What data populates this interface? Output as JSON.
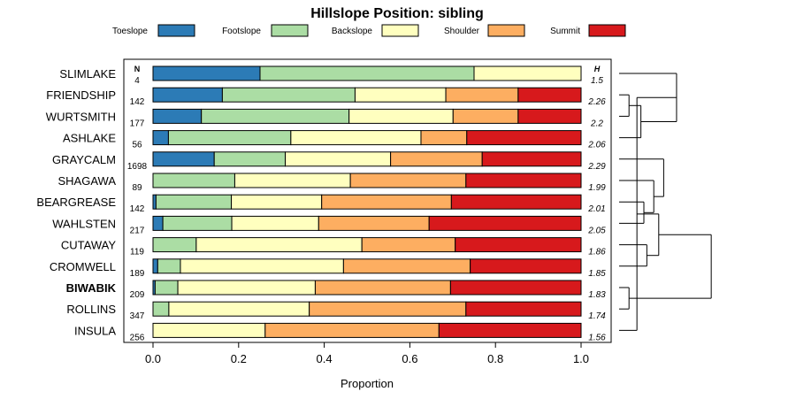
{
  "chart_data": {
    "type": "bar",
    "title": "Hillslope Position: sibling",
    "xlabel": "Proportion",
    "ylabel": "",
    "xlim": [
      0,
      1
    ],
    "xticks": [
      "0.0",
      "0.2",
      "0.4",
      "0.6",
      "0.8",
      "1.0"
    ],
    "n_header": "N",
    "h_header": "H",
    "highlighted": "BIWABIK",
    "legend_position": "top",
    "series": [
      {
        "name": "Toeslope",
        "color": "#2c7bb6"
      },
      {
        "name": "Footslope",
        "color": "#abdda4"
      },
      {
        "name": "Backslope",
        "color": "#ffffbf"
      },
      {
        "name": "Shoulder",
        "color": "#fdae61"
      },
      {
        "name": "Summit",
        "color": "#d7191c"
      }
    ],
    "rows": [
      {
        "label": "SLIMLAKE",
        "n": "4",
        "h": "1.5",
        "values": [
          0.25,
          0.5,
          0.25,
          0,
          0
        ]
      },
      {
        "label": "FRIENDSHIP",
        "n": "142",
        "h": "2.26",
        "values": [
          0.162,
          0.31,
          0.212,
          0.169,
          0.147
        ]
      },
      {
        "label": "WURTSMITH",
        "n": "177",
        "h": "2.2",
        "values": [
          0.113,
          0.345,
          0.243,
          0.152,
          0.147
        ]
      },
      {
        "label": "ASHLAKE",
        "n": "56",
        "h": "2.06",
        "values": [
          0.036,
          0.286,
          0.304,
          0.107,
          0.267
        ]
      },
      {
        "label": "GRAYCALM",
        "n": "1698",
        "h": "2.29",
        "values": [
          0.143,
          0.166,
          0.246,
          0.214,
          0.231
        ]
      },
      {
        "label": "SHAGAWA",
        "n": "89",
        "h": "1.99",
        "values": [
          0,
          0.191,
          0.27,
          0.27,
          0.269
        ]
      },
      {
        "label": "BEARGREASE",
        "n": "142",
        "h": "2.01",
        "values": [
          0.007,
          0.176,
          0.211,
          0.303,
          0.303
        ]
      },
      {
        "label": "WAHLSTEN",
        "n": "217",
        "h": "2.05",
        "values": [
          0.023,
          0.161,
          0.203,
          0.258,
          0.355
        ]
      },
      {
        "label": "CUTAWAY",
        "n": "119",
        "h": "1.86",
        "values": [
          0,
          0.101,
          0.387,
          0.218,
          0.294
        ]
      },
      {
        "label": "CROMWELL",
        "n": "189",
        "h": "1.85",
        "values": [
          0.011,
          0.053,
          0.381,
          0.296,
          0.259
        ]
      },
      {
        "label": "BIWABIK",
        "n": "209",
        "h": "1.83",
        "values": [
          0.005,
          0.053,
          0.321,
          0.316,
          0.305
        ]
      },
      {
        "label": "ROLLINS",
        "n": "347",
        "h": "1.74",
        "values": [
          0,
          0.037,
          0.328,
          0.366,
          0.269
        ]
      },
      {
        "label": "INSULA",
        "n": "256",
        "h": "1.56",
        "values": [
          0,
          0,
          0.262,
          0.406,
          0.332
        ]
      }
    ],
    "dendrogram": {
      "merges": [
        [
          1,
          2
        ],
        [
          13,
          3
        ],
        [
          0,
          14
        ],
        [
          10,
          11
        ],
        [
          15,
          12
        ],
        [
          8,
          9
        ],
        [
          6,
          7
        ],
        [
          5,
          19
        ],
        [
          18,
          17
        ],
        [
          20,
          4
        ],
        [
          21,
          16
        ]
      ],
      "heights": [
        0.1,
        0.22,
        0.58,
        0.1,
        0.18,
        0.28,
        0.25,
        0.35,
        0.4,
        0.45,
        0.93
      ]
    }
  }
}
